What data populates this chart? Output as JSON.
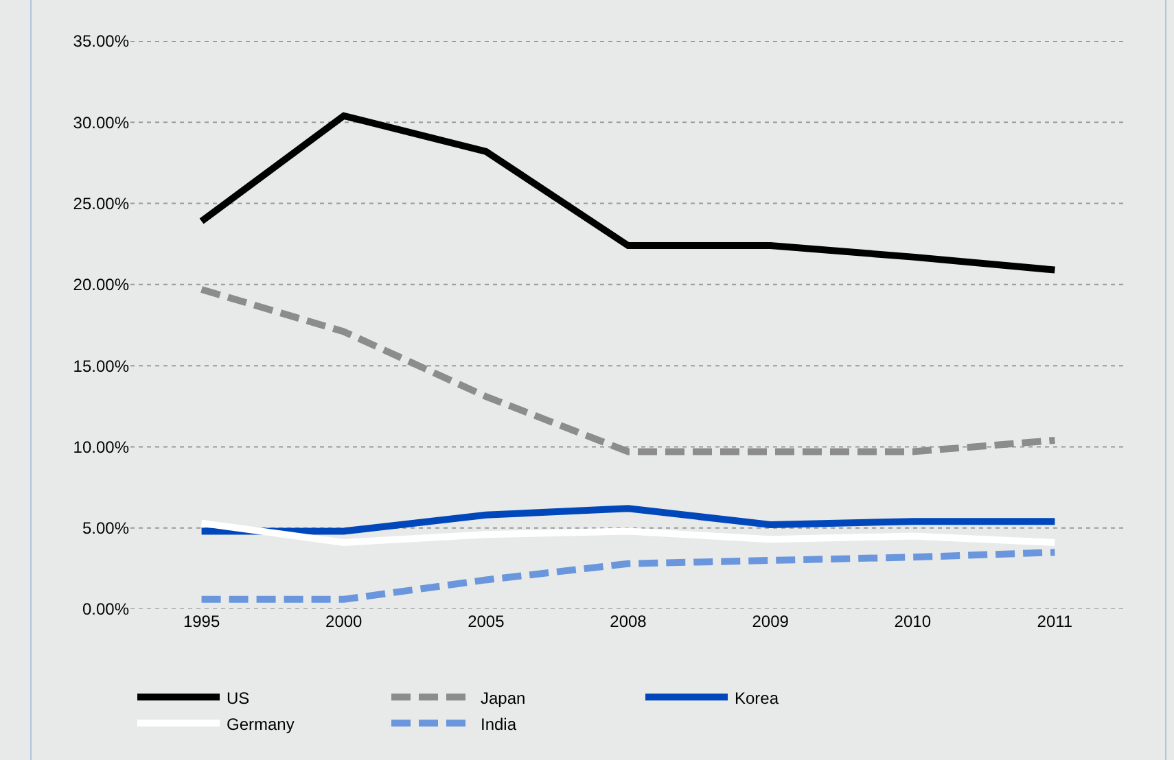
{
  "chart_data": {
    "type": "line",
    "categories": [
      "1995",
      "2000",
      "2005",
      "2008",
      "2009",
      "2010",
      "2011"
    ],
    "series": [
      {
        "name": "US",
        "color": "#000000",
        "line_style": "solid",
        "values": [
          23.9,
          30.4,
          28.2,
          22.4,
          22.4,
          21.7,
          20.9
        ]
      },
      {
        "name": "Japan",
        "color": "#8c8c8c",
        "line_style": "dashed",
        "values": [
          19.7,
          17.1,
          13.1,
          9.7,
          9.7,
          9.7,
          10.4
        ]
      },
      {
        "name": "Korea",
        "color": "#0047bb",
        "line_style": "solid",
        "values": [
          4.8,
          4.8,
          5.8,
          6.2,
          5.2,
          5.4,
          5.4
        ]
      },
      {
        "name": "Germany",
        "color": "#ffffff",
        "line_style": "solid",
        "values": [
          5.3,
          4.1,
          4.6,
          4.8,
          4.3,
          4.5,
          4.1
        ]
      },
      {
        "name": "India",
        "color": "#6a96dd",
        "line_style": "dashed",
        "values": [
          0.6,
          0.6,
          1.8,
          2.8,
          3.0,
          3.2,
          3.5
        ]
      }
    ],
    "ylim": [
      0,
      35
    ],
    "yticks": [
      {
        "value": 0,
        "label": "0.00%"
      },
      {
        "value": 5,
        "label": "5.00%"
      },
      {
        "value": 10,
        "label": "10.00%"
      },
      {
        "value": 15,
        "label": "15.00%"
      },
      {
        "value": 20,
        "label": "20.00%"
      },
      {
        "value": 25,
        "label": "25.00%"
      },
      {
        "value": 30,
        "label": "30.00%"
      },
      {
        "value": 35,
        "label": "35.00%"
      }
    ],
    "grid": "y",
    "legend": "bottom left",
    "marker": "none"
  }
}
